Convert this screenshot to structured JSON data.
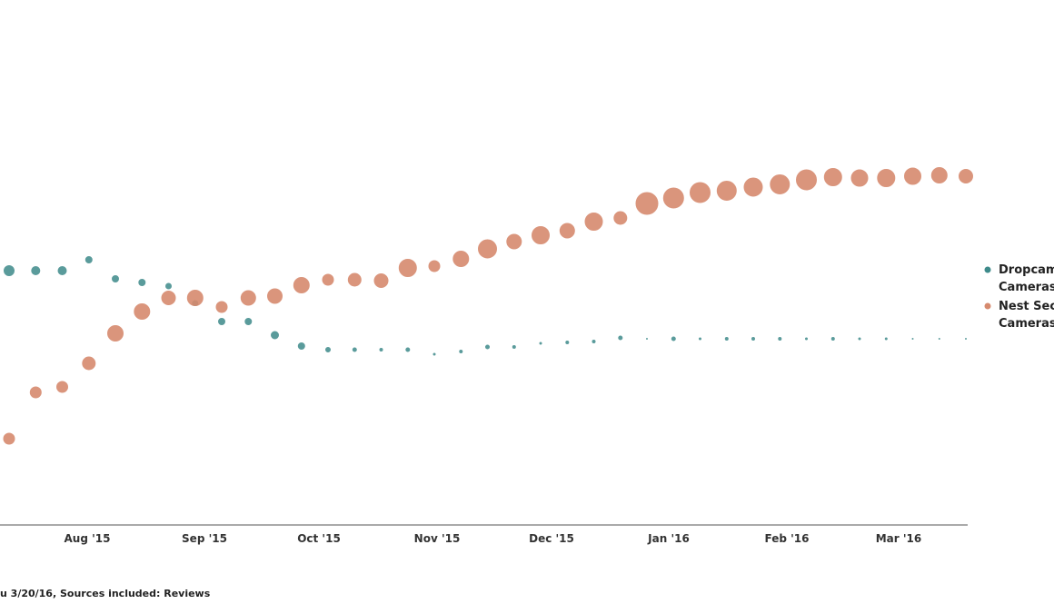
{
  "chart_data": {
    "type": "scatter",
    "title": "",
    "xlabel": "",
    "ylabel": "",
    "x_ticks": [
      "Aug '15",
      "Sep '15",
      "Oct '15",
      "Nov '15",
      "Dec '15",
      "Jan '16",
      "Feb '16",
      "Mar '16"
    ],
    "legend": [
      {
        "label_line1": "Dropcam",
        "label_line2": "Cameras",
        "color": "#3d8a8a"
      },
      {
        "label_line1": "Nest Sec",
        "label_line2": "Cameras",
        "color": "#d68a6e"
      }
    ],
    "series": [
      {
        "name": "Dropcam Cameras",
        "color": "#3d8a8a",
        "values": [
          2.8,
          2.8,
          2.8,
          2.92,
          2.71,
          2.67,
          2.63,
          2.44,
          2.24,
          2.24,
          2.09,
          1.97,
          1.93,
          1.93,
          1.93,
          1.93,
          1.88,
          1.91,
          1.96,
          1.96,
          2.0,
          2.01,
          2.02,
          2.06,
          2.05,
          2.05,
          2.05,
          2.05,
          2.05,
          2.05,
          2.05,
          2.05,
          2.05,
          2.05,
          2.05,
          2.05,
          2.05
        ],
        "sizes": [
          6.5,
          5.5,
          5.5,
          4.5,
          4.5,
          4.5,
          4.0,
          4.0,
          4.5,
          4.5,
          5.0,
          4.5,
          3.5,
          3.0,
          2.5,
          3.0,
          2.0,
          2.5,
          3.0,
          2.5,
          2.0,
          2.5,
          2.5,
          3.0,
          1.5,
          3.0,
          2.0,
          2.5,
          2.5,
          2.5,
          2.0,
          2.5,
          2.0,
          2.0,
          1.5,
          1.5,
          1.5
        ]
      },
      {
        "name": "Nest Security Cameras",
        "color": "#d68a6e",
        "values": [
          0.95,
          1.46,
          1.52,
          1.78,
          2.11,
          2.35,
          2.5,
          2.5,
          2.4,
          2.5,
          2.52,
          2.64,
          2.7,
          2.7,
          2.69,
          2.83,
          2.85,
          2.93,
          3.04,
          3.12,
          3.19,
          3.24,
          3.34,
          3.38,
          3.54,
          3.6,
          3.66,
          3.68,
          3.72,
          3.75,
          3.8,
          3.83,
          3.82,
          3.82,
          3.84,
          3.85,
          3.84
        ],
        "sizes": [
          7,
          7,
          7,
          8,
          9.5,
          9.5,
          8.5,
          9.5,
          7,
          9,
          9,
          9.5,
          7,
          8,
          8.5,
          10.5,
          7,
          9.5,
          11,
          9,
          10.5,
          9,
          10.5,
          8,
          13,
          12,
          12,
          11.5,
          11,
          11.5,
          12,
          10.5,
          10,
          10.5,
          10,
          9.5,
          8.5
        ]
      }
    ],
    "ylim": [
      0,
      5.5
    ]
  },
  "footer": {
    "text": "u 3/20/16, Sources included: Reviews"
  }
}
